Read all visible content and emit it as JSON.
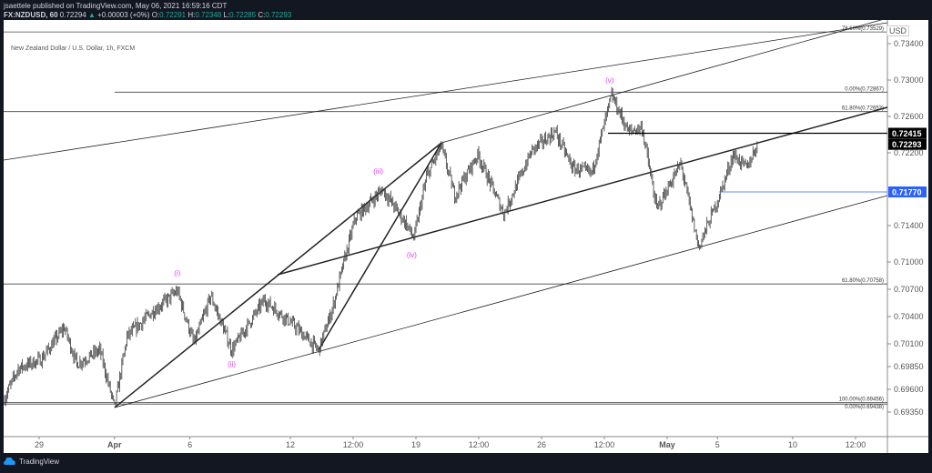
{
  "header": {
    "published": "jsaettele published on TradingView.com, May 06, 2021 16:59:16 CDT",
    "symbol": "FX:NZDUSD, 60",
    "last": "0.72294",
    "change": "+0.00003 (+0%)",
    "o_label": "O:",
    "o": "0.72291",
    "h_label": "H:",
    "h": "0.72348",
    "l_label": "L:",
    "l": "0.72285",
    "c_label": "C:",
    "c": "0.72293"
  },
  "chart_title": "New Zealand Dollar / U.S. Dollar, 1h, FXCM",
  "currency": "USD",
  "brand": "TradingView",
  "colors": {
    "candle": "#3a3a3a",
    "wave_label": "#e040fb",
    "blue_level": "#2962ff",
    "up": "#26a69a"
  },
  "chart_data": {
    "type": "candlestick",
    "price_axis_ticks": [
      "0.73400",
      "0.73000",
      "0.72600",
      "0.72200",
      "0.71400",
      "0.71000",
      "0.70700",
      "0.70400",
      "0.70100",
      "0.69850",
      "0.69600",
      "0.69350"
    ],
    "time_axis_ticks": [
      {
        "t": "2021-03-29 00:00",
        "label": "29"
      },
      {
        "t": "2021-04-01 00:00",
        "label": "Apr"
      },
      {
        "t": "2021-04-06 00:00",
        "label": "6"
      },
      {
        "t": "2021-04-12 00:00",
        "label": "12"
      },
      {
        "t": "2021-04-14 12:00",
        "label": "12:00"
      },
      {
        "t": "2021-04-19 00:00",
        "label": "19"
      },
      {
        "t": "2021-04-21 12:00",
        "label": "12:00"
      },
      {
        "t": "2021-04-26 00:00",
        "label": "26"
      },
      {
        "t": "2021-04-28 12:00",
        "label": "12:00"
      },
      {
        "t": "2021-05-03 00:00",
        "label": "May"
      },
      {
        "t": "2021-05-05 00:00",
        "label": "5"
      },
      {
        "t": "2021-05-10 00:00",
        "label": "10"
      },
      {
        "t": "2021-05-12 12:00",
        "label": "12:00"
      }
    ],
    "price_path": [
      [
        "2021-03-25 14:00",
        0.6948
      ],
      [
        "2021-03-26 04:00",
        0.6983
      ],
      [
        "2021-03-29 02:00",
        0.6993
      ],
      [
        "2021-03-30 00:00",
        0.7028
      ],
      [
        "2021-03-30 12:00",
        0.6988
      ],
      [
        "2021-03-31 10:00",
        0.7003
      ],
      [
        "2021-04-01 00:00",
        0.694
      ],
      [
        "2021-04-01 12:00",
        0.7018
      ],
      [
        "2021-04-02 10:00",
        0.7043
      ],
      [
        "2021-04-05 12:00",
        0.7068
      ],
      [
        "2021-04-06 04:00",
        0.701
      ],
      [
        "2021-04-06 20:00",
        0.7063
      ],
      [
        "2021-04-07 16:00",
        0.7003
      ],
      [
        "2021-04-08 23:00",
        0.7058
      ],
      [
        "2021-04-12 01:00",
        0.7033
      ],
      [
        "2021-04-13 03:00",
        0.7003
      ],
      [
        "2021-04-13 16:00",
        0.7048
      ],
      [
        "2021-04-14 05:00",
        0.7108
      ],
      [
        "2021-04-14 14:00",
        0.7148
      ],
      [
        "2021-04-15 16:00",
        0.718
      ],
      [
        "2021-04-16 14:00",
        0.7143
      ],
      [
        "2021-04-16 22:00",
        0.7126
      ],
      [
        "2021-04-19 10:00",
        0.7193
      ],
      [
        "2021-04-20 00:00",
        0.7228
      ],
      [
        "2021-04-20 13:00",
        0.7173
      ],
      [
        "2021-04-21 11:00",
        0.7218
      ],
      [
        "2021-04-22 12:00",
        0.7153
      ],
      [
        "2021-04-23 15:00",
        0.7223
      ],
      [
        "2021-04-26 13:00",
        0.7243
      ],
      [
        "2021-04-27 06:00",
        0.7203
      ],
      [
        "2021-04-28 00:00",
        0.7198
      ],
      [
        "2021-04-28 19:00",
        0.7283
      ],
      [
        "2021-04-29 11:00",
        0.7243
      ],
      [
        "2021-04-30 00:00",
        0.7248
      ],
      [
        "2021-04-30 14:00",
        0.7158
      ],
      [
        "2021-05-03 13:00",
        0.7208
      ],
      [
        "2021-05-04 06:00",
        0.7116
      ],
      [
        "2021-05-05 02:00",
        0.7173
      ],
      [
        "2021-05-05 15:00",
        0.7218
      ],
      [
        "2021-05-06 04:00",
        0.7203
      ],
      [
        "2021-05-06 14:00",
        0.7229
      ]
    ],
    "fib_levels": [
      {
        "label": "78.60%(0.73529)",
        "price": 0.73529
      },
      {
        "label": "0.00%(0.72867)",
        "price": 0.72867
      },
      {
        "label": "61.80%(0.72653)",
        "price": 0.72653
      },
      {
        "label": "61.80%(0.70758)",
        "price": 0.70758
      },
      {
        "label": "100.00%(0.69456)",
        "price": 0.69456
      },
      {
        "label": "0.00%(0.69438)",
        "price": 0.69438
      }
    ],
    "price_markers": [
      {
        "label": "0.72415",
        "price": 0.72415,
        "style": "black"
      },
      {
        "label": "0.72293",
        "price": 0.72293,
        "style": "black"
      },
      {
        "label": "0.71770",
        "price": 0.7177,
        "style": "blue"
      }
    ],
    "wave_labels": [
      {
        "text": "(i)",
        "t": "2021-04-05 12:00",
        "price": 0.7085
      },
      {
        "text": "(ii)",
        "t": "2021-04-07 16:00",
        "price": 0.6985
      },
      {
        "text": "(iii)",
        "t": "2021-04-15 12:00",
        "price": 0.7197
      },
      {
        "text": "(iv)",
        "t": "2021-04-16 20:00",
        "price": 0.7105
      },
      {
        "text": "(v)",
        "t": "2021-04-28 17:00",
        "price": 0.7297
      }
    ]
  }
}
